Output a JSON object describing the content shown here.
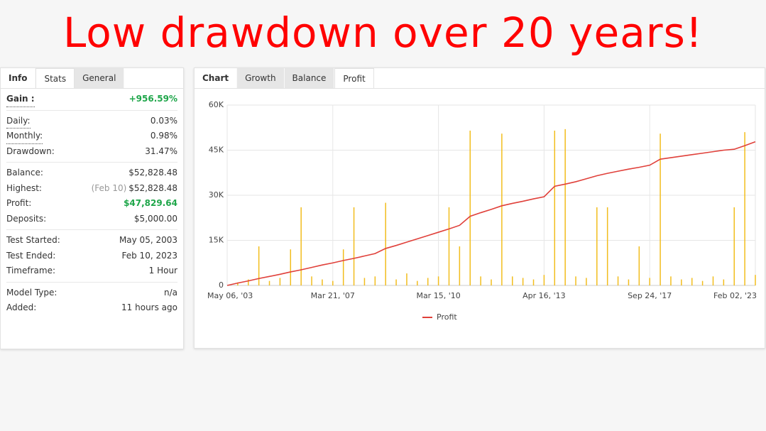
{
  "headline": "Low drawdown over 20 years!",
  "left_tabs": {
    "items": [
      "Info",
      "Stats",
      "General"
    ],
    "active": 1
  },
  "stats_groups": [
    [
      {
        "label": "Gain :",
        "value": "+956.59%",
        "color": "#1fa64a"
      }
    ],
    [
      {
        "label": "Daily:",
        "value": "0.03%"
      },
      {
        "label": "Monthly:",
        "value": "0.98%"
      },
      {
        "label": "Drawdown:",
        "value": "31.47%"
      }
    ],
    [
      {
        "label": "Balance:",
        "value": "$52,828.48"
      },
      {
        "label": "Highest:",
        "note": "(Feb 10)",
        "value": "$52,828.48"
      },
      {
        "label": "Profit:",
        "value": "$47,829.64",
        "color": "#1fa64a"
      },
      {
        "label": "Deposits:",
        "value": "$5,000.00"
      }
    ],
    [
      {
        "label": "Test Started:",
        "value": "May 05, 2003"
      },
      {
        "label": "Test Ended:",
        "value": "Feb 10, 2023"
      },
      {
        "label": "Timeframe:",
        "value": "1 Hour"
      }
    ],
    [
      {
        "label": "Model Type:",
        "value": "n/a"
      },
      {
        "label": "Added:",
        "value": "11 hours ago"
      }
    ]
  ],
  "right_tabs": {
    "items": [
      "Chart",
      "Growth",
      "Balance",
      "Profit"
    ],
    "active": 3
  },
  "chart_data": {
    "type": "line",
    "categories": [
      "May 06, '03",
      null,
      null,
      null,
      null,
      null,
      null,
      null,
      null,
      null,
      "Mar 21, '07",
      null,
      null,
      null,
      null,
      null,
      null,
      null,
      null,
      null,
      "Mar 15, '10",
      null,
      null,
      null,
      null,
      null,
      null,
      null,
      null,
      null,
      "Apr 16, '13",
      null,
      null,
      null,
      null,
      null,
      null,
      null,
      null,
      null,
      "Sep 24, '17",
      null,
      null,
      null,
      null,
      null,
      null,
      null,
      null,
      null,
      "Feb 02, '23"
    ],
    "series": [
      {
        "name": "Profit",
        "color": "#e0403a",
        "values": [
          0,
          800,
          1500,
          2300,
          3000,
          3700,
          4500,
          5200,
          6000,
          6800,
          7500,
          8300,
          9000,
          9800,
          10600,
          12300,
          13300,
          14400,
          15500,
          16600,
          17700,
          18800,
          20000,
          23000,
          24200,
          25300,
          26500,
          27300,
          28000,
          28800,
          29500,
          33000,
          33700,
          34500,
          35500,
          36500,
          37300,
          38000,
          38700,
          39300,
          40000,
          42000,
          42500,
          43000,
          43500,
          44000,
          44500,
          45000,
          45300,
          46500,
          47800
        ]
      },
      {
        "color": "#f2bd1d",
        "values": [
          0,
          1000,
          2000,
          13000,
          1500,
          2500,
          12000,
          26000,
          3000,
          2000,
          1500,
          12000,
          26000,
          2500,
          3000,
          27500,
          2000,
          4000,
          1500,
          2500,
          3000,
          26000,
          13000,
          51500,
          3000,
          2000,
          50500,
          3000,
          2500,
          2000,
          3500,
          51500,
          52000,
          3000,
          2500,
          26000,
          26000,
          3000,
          2000,
          13000,
          2500,
          50500,
          3000,
          2000,
          2500,
          1500,
          3000,
          2000,
          26000,
          51000,
          3500
        ]
      }
    ],
    "ylim": [
      0,
      60000
    ],
    "yticks": [
      0,
      {
        "value": 15000,
        "label": "15K"
      },
      {
        "value": 30000,
        "label": "30K"
      },
      {
        "value": 45000,
        "label": "45K"
      },
      {
        "value": 60000,
        "label": "60K"
      }
    ],
    "grid": true
  }
}
